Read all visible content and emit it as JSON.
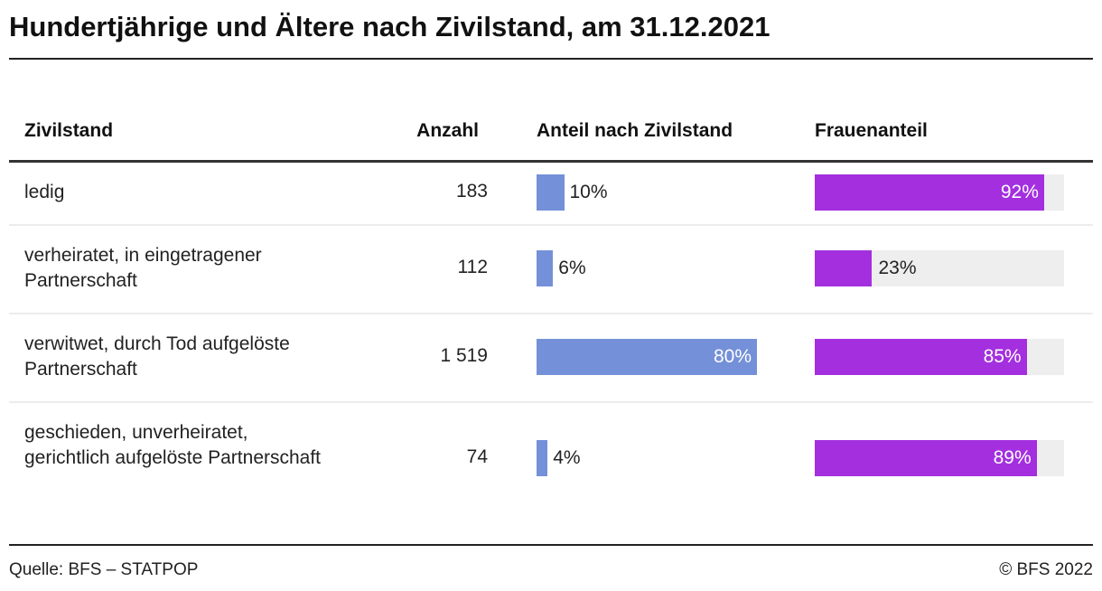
{
  "title": "Hundertjährige und Ältere nach Zivilstand, am 31.12.2021",
  "colors": {
    "share_bar": "#7490d8",
    "female_bar": "#a32fdf",
    "track": "#eeeeee"
  },
  "chart_data": {
    "type": "table",
    "columns": [
      "Zivilstand",
      "Anzahl",
      "Anteil nach Zivilstand",
      "Frauenanteil"
    ],
    "rows": [
      {
        "label": "ledig",
        "count": "183",
        "share": 10,
        "share_label": "10%",
        "female": 92,
        "female_label": "92%"
      },
      {
        "label": "verheiratet, in eingetragener Partnerschaft",
        "count": "112",
        "share": 6,
        "share_label": "6%",
        "female": 23,
        "female_label": "23%"
      },
      {
        "label": "verwitwet, durch Tod aufgelöste Partnerschaft",
        "count": "1 519",
        "share": 80,
        "share_label": "80%",
        "female": 85,
        "female_label": "85%"
      },
      {
        "label": "geschieden, unverheiratet, gerichtlich aufgelöste Partnerschaft",
        "count": "74",
        "share": 4,
        "share_label": "4%",
        "female": 89,
        "female_label": "89%"
      }
    ]
  },
  "footer": {
    "source": "Quelle: BFS – STATPOP",
    "copyright": "© BFS 2022"
  }
}
